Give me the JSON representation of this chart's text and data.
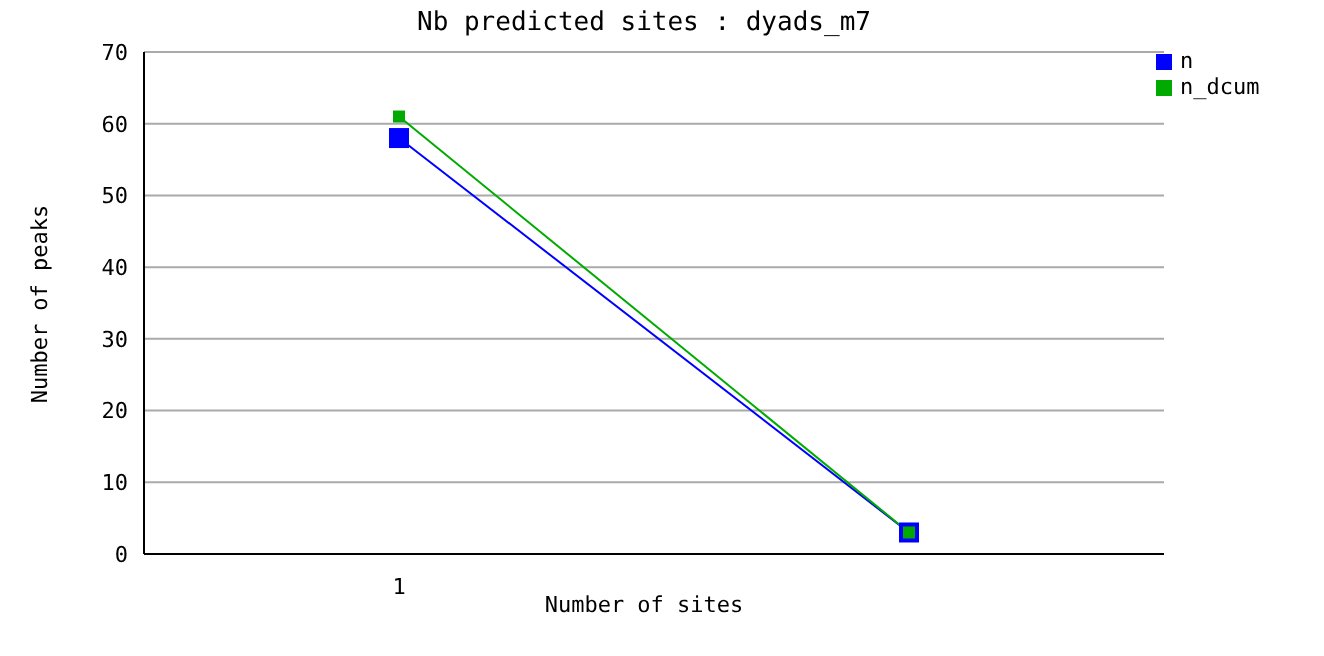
{
  "chart_data": {
    "type": "line",
    "title": "Nb predicted sites : dyads_m7",
    "xlabel": "Number of sites",
    "ylabel": "Number of peaks",
    "categories": [
      "1",
      null
    ],
    "series": [
      {
        "name": "n",
        "color": "#0000ff",
        "values": [
          58,
          3
        ]
      },
      {
        "name": "n_dcum",
        "color": "#00aa00",
        "values": [
          61,
          3
        ]
      }
    ],
    "ylim": [
      0,
      70
    ],
    "yticks": [
      0,
      10,
      20,
      30,
      40,
      50,
      60,
      70
    ],
    "grid": "y",
    "legend": "top right",
    "marker": "square",
    "line_style": "solid"
  }
}
